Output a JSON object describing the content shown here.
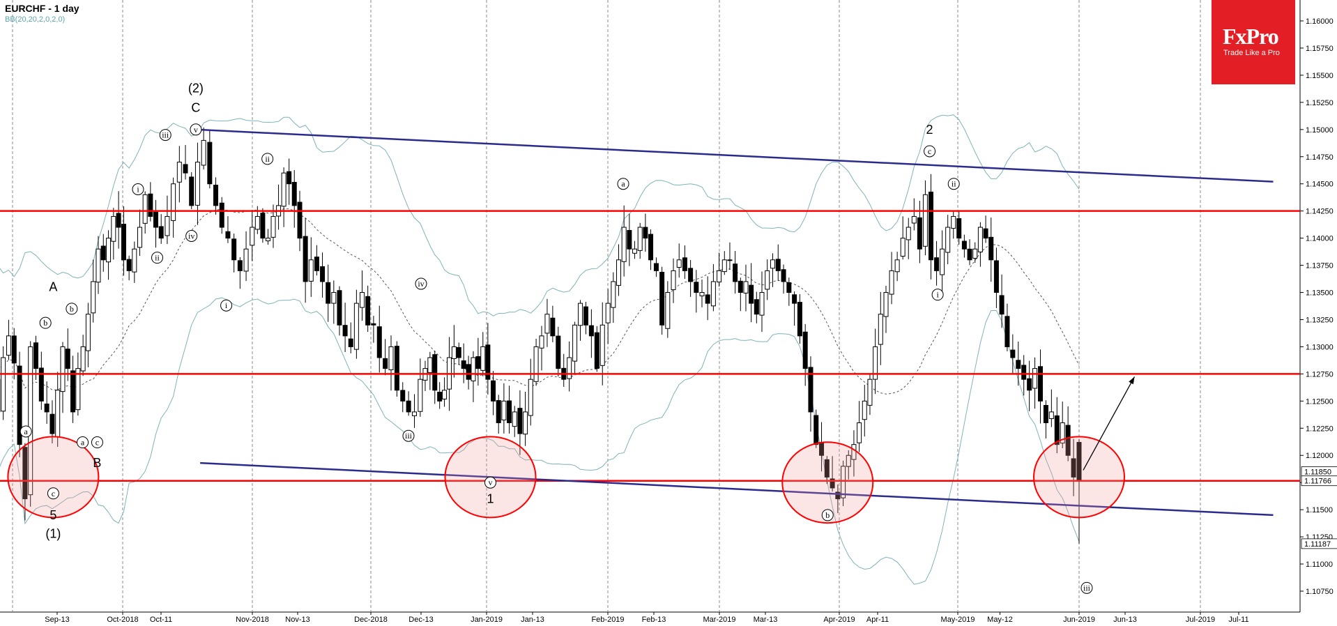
{
  "header": {
    "title": "EURCHF - 1 day",
    "indicator": "BB(20,20,2,0,2,0)"
  },
  "logo": {
    "brand": "FxPro",
    "tagline": "Trade Like a Pro",
    "color": "#e31e24"
  },
  "chart_data": {
    "type": "candlestick",
    "symbol": "EURCHF",
    "timeframe": "1 day",
    "ylim": [
      1.1055,
      1.162
    ],
    "yticks": [
      "1.16000",
      "1.15750",
      "1.15500",
      "1.15250",
      "1.15000",
      "1.14750",
      "1.14500",
      "1.14250",
      "1.14000",
      "1.13750",
      "1.13500",
      "1.13250",
      "1.13000",
      "1.12750",
      "1.12500",
      "1.12250",
      "1.12000",
      "1.11750",
      "1.11500",
      "1.11250",
      "1.11000",
      "1.10750"
    ],
    "xticks": [
      "Sep-13",
      "Oct-2018",
      "Oct-11",
      "Nov-2018",
      "Nov-13",
      "Dec-2018",
      "Dec-13",
      "Jan-2019",
      "Jan-13",
      "Feb-2019",
      "Feb-13",
      "Mar-2019",
      "Mar-13",
      "Apr-2019",
      "Apr-11",
      "May-2019",
      "May-12",
      "Jun-2019",
      "Jun-13",
      "Jul-2019",
      "Jul-11"
    ],
    "month_starts": [
      "Oct-2018",
      "Nov-2018",
      "Dec-2018",
      "Jan-2019",
      "Feb-2019",
      "Mar-2019",
      "Apr-2019",
      "May-2019",
      "Jun-2019",
      "Jul-2019"
    ],
    "price_labels": [
      {
        "value": 1.1185,
        "text": "1.11850",
        "bg": "#ffffff"
      },
      {
        "value": 1.11766,
        "text": "1.11766",
        "bg": "#ffffff"
      },
      {
        "value": 1.11187,
        "text": "1.11187",
        "bg": "#ffffff"
      }
    ],
    "closes": [
      1.133,
      1.127,
      1.124,
      1.129,
      1.131,
      1.1285,
      1.121,
      1.116,
      1.13,
      1.128,
      1.125,
      1.124,
      1.122,
      1.126,
      1.13,
      1.128,
      1.124,
      1.128,
      1.13,
      1.133,
      1.136,
      1.139,
      1.138,
      1.14,
      1.142,
      1.141,
      1.138,
      1.137,
      1.139,
      1.141,
      1.144,
      1.142,
      1.141,
      1.14,
      1.142,
      1.145,
      1.147,
      1.146,
      1.143,
      1.147,
      1.149,
      1.145,
      1.143,
      1.141,
      1.14,
      1.138,
      1.137,
      1.139,
      1.141,
      1.142,
      1.14,
      1.14,
      1.142,
      1.143,
      1.146,
      1.145,
      1.143,
      1.14,
      1.136,
      1.138,
      1.137,
      1.136,
      1.134,
      1.135,
      1.132,
      1.131,
      1.13,
      1.134,
      1.135,
      1.132,
      1.132,
      1.129,
      1.128,
      1.13,
      1.126,
      1.125,
      1.124,
      1.124,
      1.127,
      1.128,
      1.129,
      1.126,
      1.125,
      1.126,
      1.129,
      1.13,
      1.129,
      1.128,
      1.127,
      1.129,
      1.128,
      1.13,
      1.127,
      1.125,
      1.123,
      1.125,
      1.123,
      1.124,
      1.122,
      1.124,
      1.127,
      1.13,
      1.131,
      1.133,
      1.131,
      1.128,
      1.127,
      1.129,
      1.132,
      1.134,
      1.132,
      1.131,
      1.128,
      1.132,
      1.134,
      1.136,
      1.138,
      1.141,
      1.139,
      1.139,
      1.141,
      1.14,
      1.138,
      1.137,
      1.132,
      1.135,
      1.137,
      1.138,
      1.137,
      1.136,
      1.135,
      1.135,
      1.134,
      1.136,
      1.137,
      1.138,
      1.138,
      1.136,
      1.135,
      1.136,
      1.134,
      1.133,
      1.135,
      1.137,
      1.138,
      1.137,
      1.136,
      1.135,
      1.134,
      1.131,
      1.128,
      1.124,
      1.121,
      1.12,
      1.118,
      1.117,
      1.116,
      1.119,
      1.12,
      1.121,
      1.123,
      1.125,
      1.127,
      1.13,
      1.133,
      1.135,
      1.137,
      1.138,
      1.14,
      1.141,
      1.142,
      1.139,
      1.144,
      1.138,
      1.137,
      1.139,
      1.141,
      1.142,
      1.14,
      1.139,
      1.138,
      1.139,
      1.141,
      1.14,
      1.138,
      1.135,
      1.133,
      1.13,
      1.129,
      1.128,
      1.127,
      1.126,
      1.128,
      1.125,
      1.123,
      1.124,
      1.121,
      1.123,
      1.12,
      1.118,
      1.1177
    ],
    "annotations": [
      {
        "label": "A",
        "date": "Sep-12",
        "price": 1.1355,
        "style": "plain"
      },
      {
        "label": "b",
        "date": "Sep-10",
        "price": 1.1322,
        "style": "circle"
      },
      {
        "label": "a",
        "date": "Sep-05",
        "price": 1.1222,
        "style": "circle"
      },
      {
        "label": "b",
        "date": "Sep-17",
        "price": 1.1335,
        "style": "circle"
      },
      {
        "label": "a",
        "date": "Sep-20",
        "price": 1.1212,
        "style": "circle"
      },
      {
        "label": "c",
        "date": "Sep-24",
        "price": 1.1212,
        "style": "circle"
      },
      {
        "label": "B",
        "date": "Sep-24",
        "price": 1.1193,
        "style": "plain"
      },
      {
        "label": "c",
        "date": "Sep-12",
        "price": 1.1165,
        "style": "circle"
      },
      {
        "label": "5",
        "date": "Sep-12",
        "price": 1.1145,
        "style": "plain"
      },
      {
        "label": "(1)",
        "date": "Sep-12",
        "price": 1.1128,
        "style": "plain"
      },
      {
        "label": "i",
        "date": "Oct-05",
        "price": 1.1445,
        "style": "circle"
      },
      {
        "label": "ii",
        "date": "Oct-10",
        "price": 1.1382,
        "style": "circle"
      },
      {
        "label": "iii",
        "date": "Oct-12",
        "price": 1.1495,
        "style": "circle"
      },
      {
        "label": "iv",
        "date": "Oct-18",
        "price": 1.1402,
        "style": "circle"
      },
      {
        "label": "v",
        "date": "Oct-19",
        "price": 1.15,
        "style": "circle"
      },
      {
        "label": "C",
        "date": "Oct-19",
        "price": 1.152,
        "style": "plain"
      },
      {
        "label": "(2)",
        "date": "Oct-19",
        "price": 1.1538,
        "style": "plain"
      },
      {
        "label": "i",
        "date": "Oct-26",
        "price": 1.1338,
        "style": "circle"
      },
      {
        "label": "ii",
        "date": "Nov-05",
        "price": 1.1473,
        "style": "circle"
      },
      {
        "label": "iv",
        "date": "Dec-13",
        "price": 1.1358,
        "style": "circle"
      },
      {
        "label": "iii",
        "date": "Dec-10",
        "price": 1.1218,
        "style": "circle"
      },
      {
        "label": "v",
        "date": "Jan-02",
        "price": 1.1175,
        "style": "circle"
      },
      {
        "label": "1",
        "date": "Jan-02",
        "price": 1.116,
        "style": "plain"
      },
      {
        "label": "a",
        "date": "Feb-05",
        "price": 1.145,
        "style": "circle"
      },
      {
        "label": "b",
        "date": "Mar-29",
        "price": 1.1145,
        "style": "circle"
      },
      {
        "label": "c",
        "date": "Apr-24",
        "price": 1.148,
        "style": "circle"
      },
      {
        "label": "2",
        "date": "Apr-24",
        "price": 1.15,
        "style": "plain"
      },
      {
        "label": "ii",
        "date": "Apr-30",
        "price": 1.145,
        "style": "circle"
      },
      {
        "label": "i",
        "date": "Apr-26",
        "price": 1.1348,
        "style": "circle"
      },
      {
        "label": "iii",
        "date": "Jun-03",
        "price": 1.1078,
        "style": "circle"
      }
    ],
    "support_resistance": [
      1.1425,
      1.1275,
      1.11766
    ],
    "channel_upper": {
      "from": {
        "date": "Oct-19",
        "price": 1.15
      },
      "to": {
        "date": "Jul-20",
        "price": 1.1452
      }
    },
    "channel_lower": {
      "from": {
        "date": "Oct-20",
        "price": 1.1193
      },
      "to": {
        "date": "Jul-20",
        "price": 1.1145
      }
    },
    "circles": [
      {
        "date": "Sep-12",
        "price": 1.118
      },
      {
        "date": "Jan-02",
        "price": 1.118
      },
      {
        "date": "Mar-29",
        "price": 1.1175
      },
      {
        "date": "Jun-01",
        "price": 1.118
      }
    ],
    "projection_arrow": {
      "from": {
        "date": "Jun-01",
        "price": 1.118
      },
      "to": {
        "date": "Jun-10",
        "price": 1.1275
      }
    },
    "grid": "vertical-dashed",
    "legend_placement": "none"
  }
}
